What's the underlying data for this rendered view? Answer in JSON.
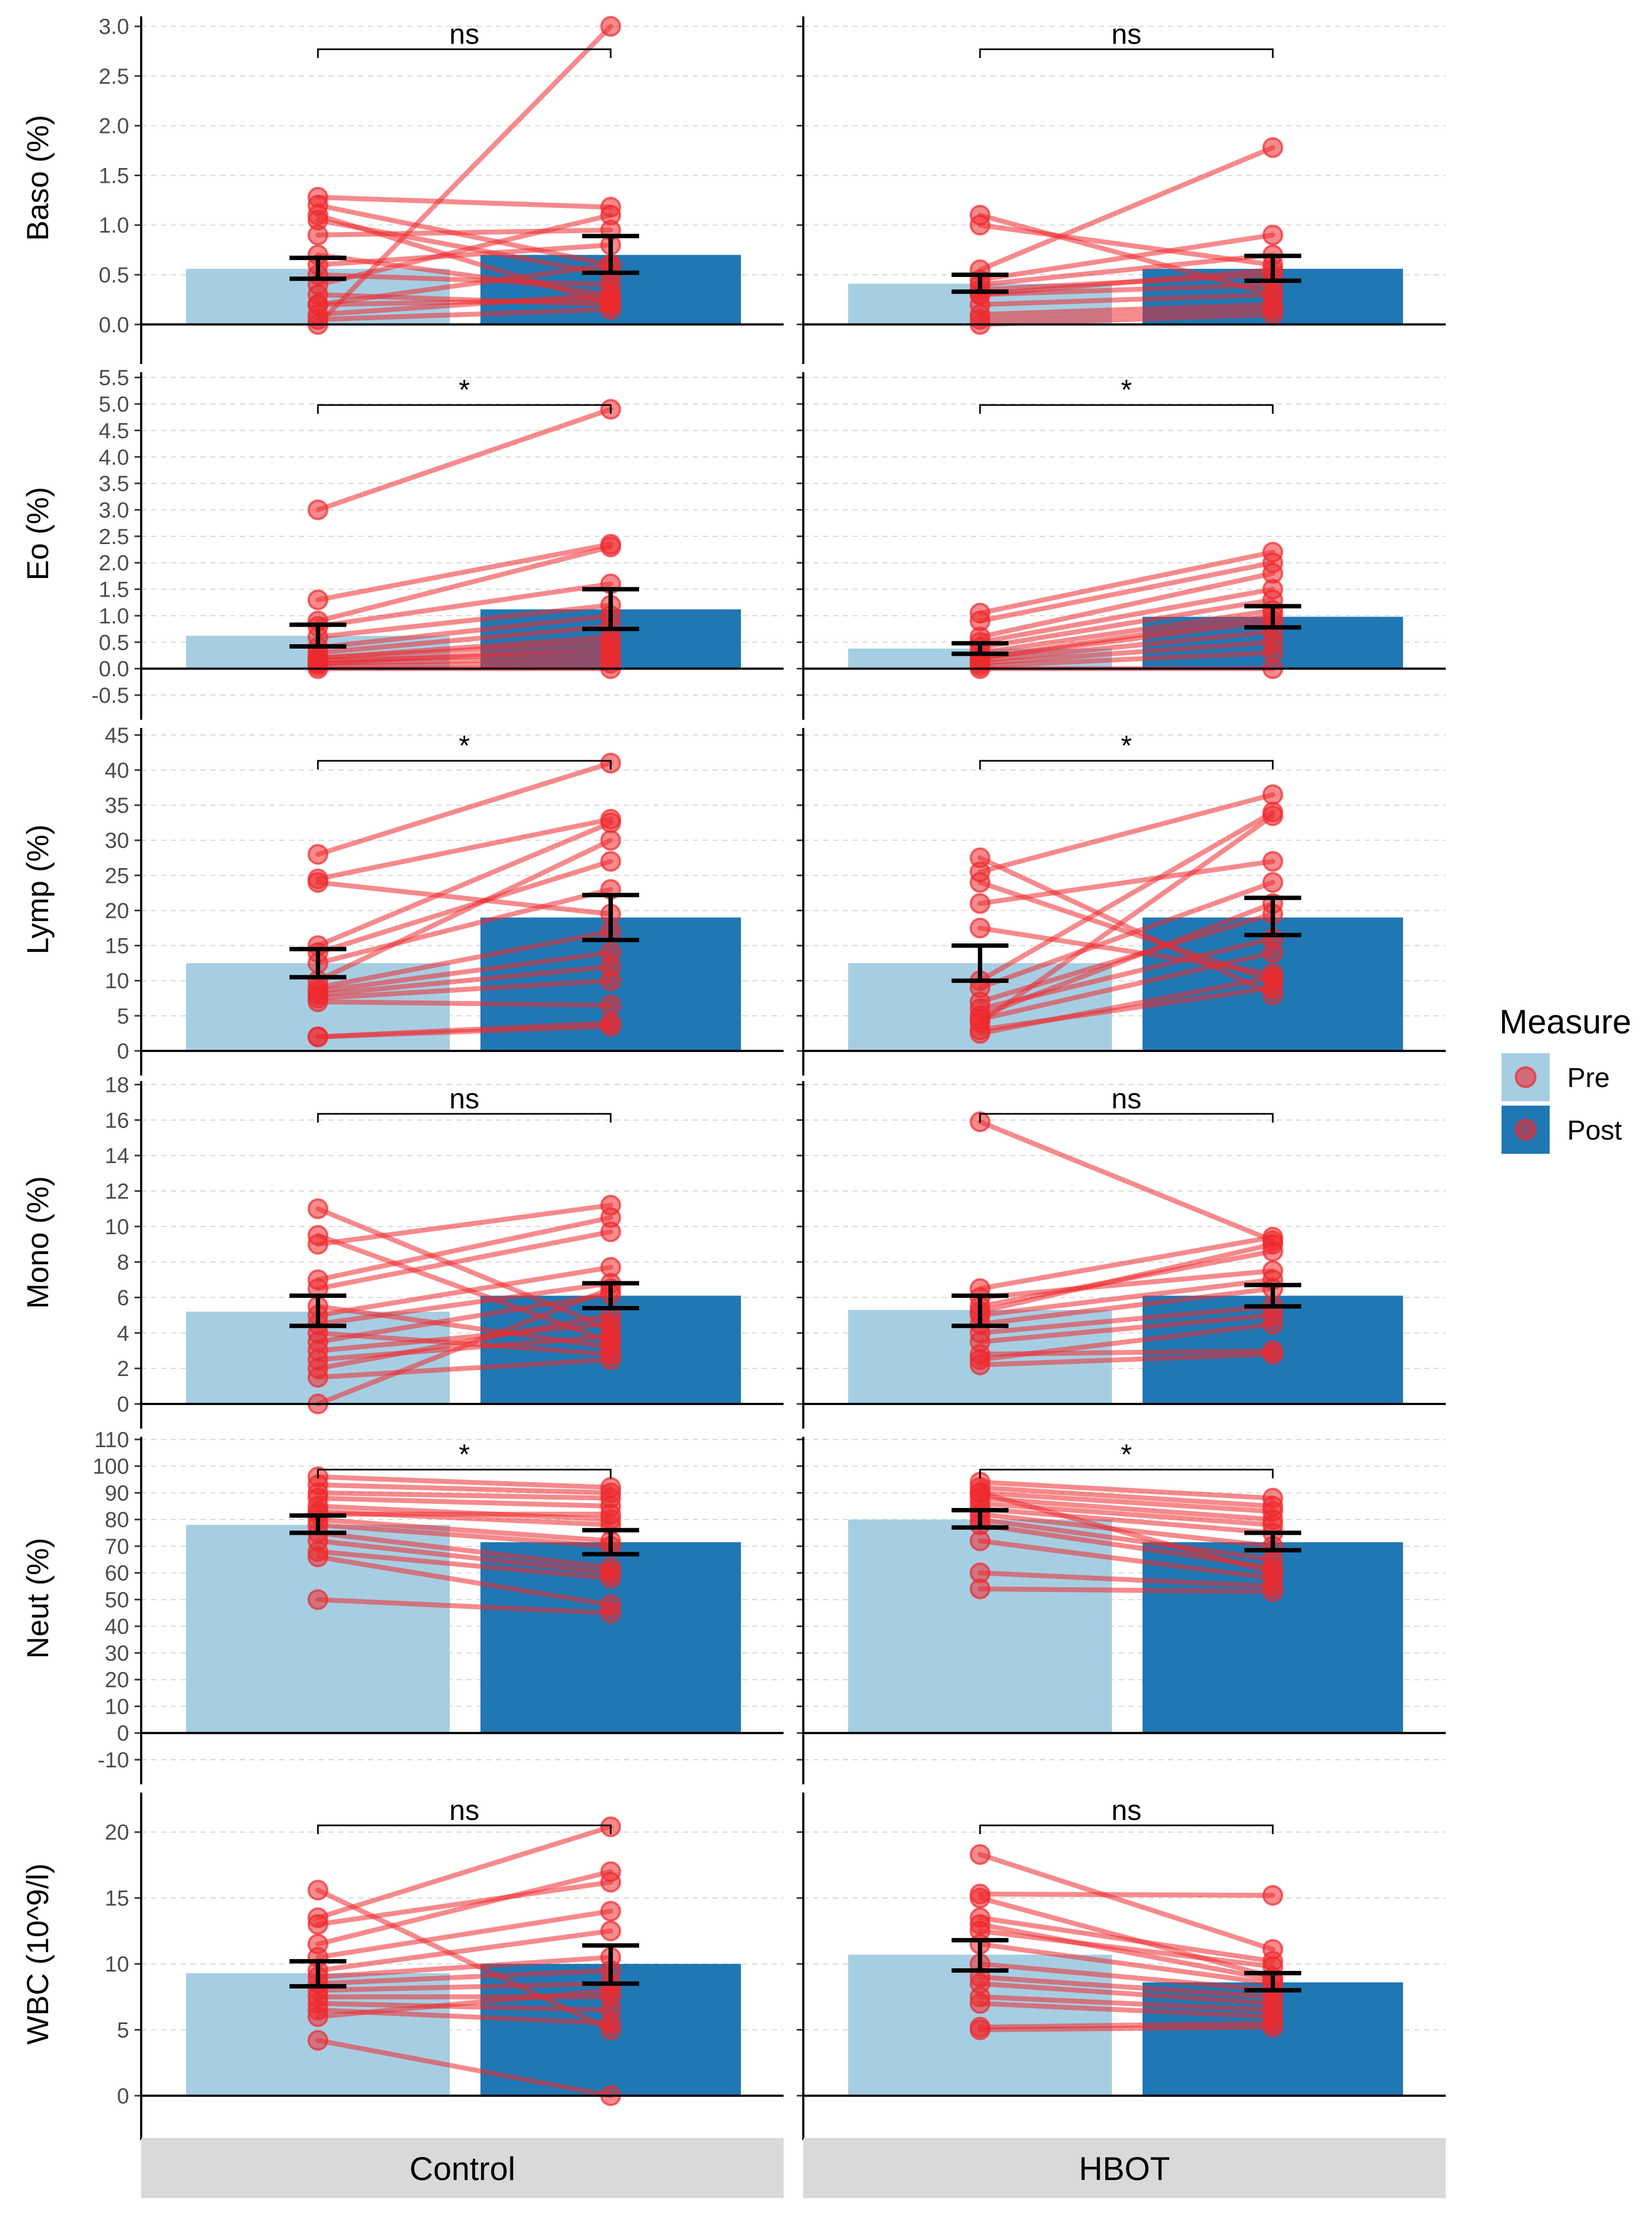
{
  "chart_data": {
    "type": "bar",
    "facets": [
      "Control",
      "HBOT"
    ],
    "legend": {
      "title": "Measure",
      "entries": [
        {
          "label": "Pre",
          "color": "#a6cee3"
        },
        {
          "label": "Post",
          "color": "#1f78b4"
        }
      ]
    },
    "categories": [
      "Pre",
      "Post"
    ],
    "colors": {
      "pre": "#a6cee3",
      "post": "#1f78b4",
      "points": "#ee2a2e",
      "grid": "#d9d9d9"
    },
    "panels": [
      {
        "ylabel": "Baso (%)",
        "ylim": [
          -0.15,
          3.1
        ],
        "ticks": [
          0,
          0.5,
          1,
          1.5,
          2,
          2.5,
          3
        ],
        "tick_labels": [
          "0.0",
          "0.5",
          "1.0",
          "1.5",
          "2.0",
          "2.5",
          "3.0"
        ],
        "groups": [
          {
            "facet": "Control",
            "sig": "ns",
            "pre": 0.56,
            "post": 0.7,
            "pre_err": [
              0.46,
              0.67
            ],
            "post_err": [
              0.52,
              0.89
            ],
            "pairs": [
              [
                0.0,
                3.0
              ],
              [
                1.28,
                1.18
              ],
              [
                1.2,
                0.6
              ],
              [
                1.1,
                0.2
              ],
              [
                1.05,
                0.5
              ],
              [
                0.9,
                0.95
              ],
              [
                0.7,
                0.3
              ],
              [
                0.6,
                0.8
              ],
              [
                0.5,
                0.4
              ],
              [
                0.4,
                1.1
              ],
              [
                0.3,
                0.2
              ],
              [
                0.2,
                0.6
              ],
              [
                0.1,
                0.3
              ],
              [
                0.05,
                0.15
              ],
              [
                0.2,
                0.25
              ]
            ]
          },
          {
            "facet": "HBOT",
            "sig": "ns",
            "pre": 0.41,
            "post": 0.56,
            "pre_err": [
              0.33,
              0.5
            ],
            "post_err": [
              0.44,
              0.69
            ],
            "pairs": [
              [
                1.1,
                0.3
              ],
              [
                1.0,
                0.6
              ],
              [
                0.55,
                1.78
              ],
              [
                0.45,
                0.9
              ],
              [
                0.4,
                0.7
              ],
              [
                0.35,
                0.5
              ],
              [
                0.3,
                0.4
              ],
              [
                0.2,
                0.3
              ],
              [
                0.1,
                0.2
              ],
              [
                0.05,
                0.15
              ],
              [
                0.0,
                0.1
              ],
              [
                0.3,
                0.55
              ]
            ]
          }
        ]
      },
      {
        "ylabel": "Eo (%)",
        "ylim": [
          -0.5,
          5.6
        ],
        "ticks": [
          -0.5,
          0,
          0.5,
          1,
          1.5,
          2,
          2.5,
          3,
          3.5,
          4,
          4.5,
          5,
          5.5
        ],
        "tick_labels": [
          "-0.5",
          "0.0",
          "0.5",
          "1.0",
          "1.5",
          "2.0",
          "2.5",
          "3.0",
          "3.5",
          "4.0",
          "4.5",
          "5.0",
          "5.5"
        ],
        "groups": [
          {
            "facet": "Control",
            "sig": "*",
            "pre": 0.62,
            "post": 1.12,
            "pre_err": [
              0.42,
              0.83
            ],
            "post_err": [
              0.75,
              1.5
            ],
            "pairs": [
              [
                3.0,
                4.9
              ],
              [
                1.3,
                2.35
              ],
              [
                0.9,
                2.3
              ],
              [
                0.8,
                1.6
              ],
              [
                0.6,
                1.2
              ],
              [
                0.4,
                1.0
              ],
              [
                0.3,
                0.8
              ],
              [
                0.2,
                0.5
              ],
              [
                0.15,
                0.3
              ],
              [
                0.1,
                0.2
              ],
              [
                0.05,
                0.1
              ],
              [
                0.0,
                0.0
              ],
              [
                0.2,
                0.6
              ],
              [
                0.1,
                0.4
              ]
            ]
          },
          {
            "facet": "HBOT",
            "sig": "*",
            "pre": 0.38,
            "post": 0.98,
            "pre_err": [
              0.28,
              0.48
            ],
            "post_err": [
              0.78,
              1.18
            ],
            "pairs": [
              [
                1.05,
                2.2
              ],
              [
                0.9,
                2.0
              ],
              [
                0.6,
                1.8
              ],
              [
                0.5,
                1.5
              ],
              [
                0.4,
                1.3
              ],
              [
                0.3,
                1.1
              ],
              [
                0.2,
                0.9
              ],
              [
                0.15,
                0.7
              ],
              [
                0.1,
                0.5
              ],
              [
                0.05,
                0.3
              ],
              [
                0.0,
                0.0
              ],
              [
                0.2,
                1.0
              ]
            ]
          }
        ]
      },
      {
        "ylabel": "Lymp (%)",
        "ylim": [
          0,
          46
        ],
        "ticks": [
          0,
          5,
          10,
          15,
          20,
          25,
          30,
          35,
          40,
          45
        ],
        "tick_labels": [
          "0",
          "5",
          "10",
          "15",
          "20",
          "25",
          "30",
          "35",
          "40",
          "45"
        ],
        "groups": [
          {
            "facet": "Control",
            "sig": "*",
            "pre": 12.5,
            "post": 19.0,
            "pre_err": [
              10.5,
              14.5
            ],
            "post_err": [
              15.8,
              22.2
            ],
            "pairs": [
              [
                28.0,
                41.0
              ],
              [
                24.5,
                33.0
              ],
              [
                24.0,
                19.5
              ],
              [
                15.0,
                32.5
              ],
              [
                14.0,
                27.0
              ],
              [
                12.5,
                23.0
              ],
              [
                9.0,
                17.0
              ],
              [
                8.5,
                14.0
              ],
              [
                8.0,
                12.0
              ],
              [
                7.5,
                10.0
              ],
              [
                7.0,
                6.5
              ],
              [
                2.0,
                4.0
              ],
              [
                2.0,
                3.5
              ],
              [
                10.0,
                30.0
              ]
            ]
          },
          {
            "facet": "HBOT",
            "sig": "*",
            "pre": 12.5,
            "post": 19.0,
            "pre_err": [
              10.0,
              15.0
            ],
            "post_err": [
              16.5,
              21.8
            ],
            "pairs": [
              [
                27.5,
                8.0
              ],
              [
                25.5,
                36.5
              ],
              [
                24.0,
                10.0
              ],
              [
                21.0,
                27.0
              ],
              [
                17.5,
                11.0
              ],
              [
                10.0,
                34.0
              ],
              [
                9.0,
                24.0
              ],
              [
                7.0,
                19.5
              ],
              [
                6.0,
                16.0
              ],
              [
                5.0,
                21.0
              ],
              [
                4.0,
                33.5
              ],
              [
                3.0,
                9.0
              ],
              [
                2.5,
                10.5
              ],
              [
                4.5,
                14.0
              ]
            ]
          }
        ]
      },
      {
        "ylabel": "Mono (%)",
        "ylim": [
          0,
          18.2
        ],
        "ticks": [
          0,
          2,
          4,
          6,
          8,
          10,
          12,
          14,
          16,
          18
        ],
        "tick_labels": [
          "0",
          "2",
          "4",
          "6",
          "8",
          "10",
          "12",
          "14",
          "16",
          "18"
        ],
        "groups": [
          {
            "facet": "Control",
            "sig": "ns",
            "pre": 5.2,
            "post": 6.1,
            "pre_err": [
              4.4,
              6.1
            ],
            "post_err": [
              5.4,
              6.8
            ],
            "pairs": [
              [
                11.0,
                4.2
              ],
              [
                9.5,
                3.5
              ],
              [
                9.0,
                11.2
              ],
              [
                7.0,
                10.5
              ],
              [
                6.5,
                9.7
              ],
              [
                5.5,
                3.2
              ],
              [
                5.0,
                7.7
              ],
              [
                4.5,
                6.8
              ],
              [
                4.0,
                2.8
              ],
              [
                3.5,
                6.2
              ],
              [
                2.5,
                3.8
              ],
              [
                2.0,
                5.0
              ],
              [
                1.5,
                2.5
              ],
              [
                0.0,
                6.5
              ],
              [
                3.0,
                4.5
              ]
            ]
          },
          {
            "facet": "HBOT",
            "sig": "ns",
            "pre": 5.3,
            "post": 6.1,
            "pre_err": [
              4.4,
              6.1
            ],
            "post_err": [
              5.5,
              6.7
            ],
            "pairs": [
              [
                15.9,
                9.2
              ],
              [
                6.5,
                9.4
              ],
              [
                6.0,
                7.5
              ],
              [
                5.5,
                8.6
              ],
              [
                5.0,
                7.0
              ],
              [
                4.5,
                6.5
              ],
              [
                4.0,
                5.5
              ],
              [
                3.5,
                5.0
              ],
              [
                2.8,
                3.0
              ],
              [
                2.5,
                4.5
              ],
              [
                2.2,
                2.8
              ],
              [
                5.2,
                9.0
              ]
            ]
          }
        ]
      },
      {
        "ylabel": "Neut (%)",
        "ylim": [
          -10,
          111
        ],
        "ticks": [
          -10,
          0,
          10,
          20,
          30,
          40,
          50,
          60,
          70,
          80,
          90,
          100,
          110
        ],
        "tick_labels": [
          "-10",
          "0",
          "10",
          "20",
          "30",
          "40",
          "50",
          "60",
          "70",
          "80",
          "90",
          "100",
          "110"
        ],
        "groups": [
          {
            "facet": "Control",
            "sig": "*",
            "pre": 78.0,
            "post": 71.5,
            "pre_err": [
              75.0,
              81.5
            ],
            "post_err": [
              67.0,
              76.0
            ],
            "pairs": [
              [
                96.0,
                92.0
              ],
              [
                93.0,
                90.0
              ],
              [
                90.0,
                88.0
              ],
              [
                88.0,
                85.0
              ],
              [
                85.0,
                80.0
              ],
              [
                83.0,
                78.0
              ],
              [
                80.0,
                72.0
              ],
              [
                78.0,
                70.0
              ],
              [
                75.0,
                62.0
              ],
              [
                72.0,
                60.0
              ],
              [
                68.0,
                58.0
              ],
              [
                66.0,
                48.0
              ],
              [
                50.0,
                45.0
              ],
              [
                82.0,
                82.0
              ]
            ]
          },
          {
            "facet": "HBOT",
            "sig": "*",
            "pre": 80.0,
            "post": 71.5,
            "pre_err": [
              77.0,
              83.5
            ],
            "post_err": [
              68.5,
              75.0
            ],
            "pairs": [
              [
                94.0,
                88.0
              ],
              [
                92.0,
                85.0
              ],
              [
                90.0,
                83.0
              ],
              [
                88.0,
                80.0
              ],
              [
                86.0,
                78.0
              ],
              [
                84.0,
                75.0
              ],
              [
                82.0,
                70.0
              ],
              [
                80.0,
                65.0
              ],
              [
                78.0,
                62.0
              ],
              [
                72.0,
                58.0
              ],
              [
                60.0,
                55.0
              ],
              [
                54.0,
                53.0
              ],
              [
                90.0,
                60.0
              ]
            ]
          }
        ]
      },
      {
        "ylabel": "WBC (10^9/l)",
        "ylim": [
          -1.5,
          23
        ],
        "ticks": [
          0,
          5,
          10,
          15,
          20
        ],
        "tick_labels": [
          "0",
          "5",
          "10",
          "15",
          "20"
        ],
        "groups": [
          {
            "facet": "Control",
            "sig": "ns",
            "pre": 9.3,
            "post": 10.0,
            "pre_err": [
              8.3,
              10.2
            ],
            "post_err": [
              8.5,
              11.4
            ],
            "pairs": [
              [
                15.6,
                5.0
              ],
              [
                13.5,
                20.4
              ],
              [
                13.0,
                16.2
              ],
              [
                11.5,
                17.0
              ],
              [
                10.5,
                14.0
              ],
              [
                9.5,
                12.5
              ],
              [
                9.0,
                10.5
              ],
              [
                8.5,
                9.5
              ],
              [
                8.0,
                8.5
              ],
              [
                7.5,
                7.5
              ],
              [
                7.0,
                6.5
              ],
              [
                6.5,
                5.5
              ],
              [
                6.0,
                8.0
              ],
              [
                4.2,
                0.0
              ]
            ]
          },
          {
            "facet": "HBOT",
            "sig": "ns",
            "pre": 10.7,
            "post": 8.6,
            "pre_err": [
              9.5,
              11.8
            ],
            "post_err": [
              8.0,
              9.3
            ],
            "pairs": [
              [
                18.3,
                11.1
              ],
              [
                15.3,
                15.2
              ],
              [
                15.0,
                9.0
              ],
              [
                13.5,
                10.2
              ],
              [
                12.5,
                9.8
              ],
              [
                11.5,
                8.5
              ],
              [
                10.0,
                8.0
              ],
              [
                9.0,
                7.5
              ],
              [
                8.5,
                7.0
              ],
              [
                7.5,
                6.5
              ],
              [
                7.0,
                6.0
              ],
              [
                5.2,
                5.5
              ],
              [
                5.0,
                5.2
              ],
              [
                13.0,
                8.8
              ]
            ]
          }
        ]
      }
    ]
  }
}
